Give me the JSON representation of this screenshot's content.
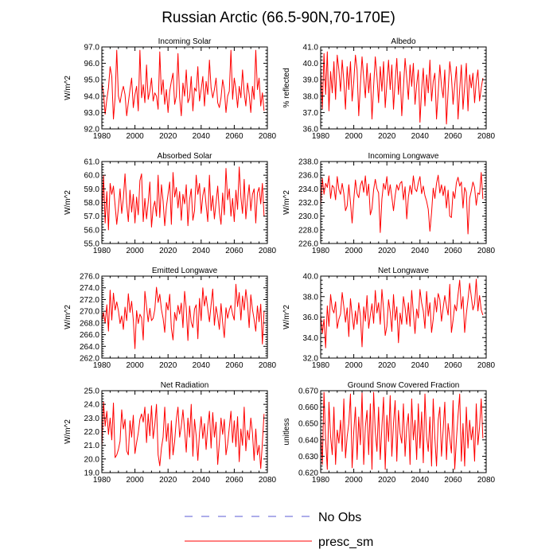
{
  "figure_title": "Russian Arctic (66.5-90N,70-170E)",
  "colors": {
    "obs": "#5b5bd6",
    "model": "#ff0000",
    "axis": "#000000"
  },
  "legend": {
    "obs_label": "No Obs",
    "model_label": "presc_sm"
  },
  "chart_data": [
    {
      "type": "line",
      "title": "Incoming Solar",
      "ylabel": "W/m^2",
      "xlim": [
        1980,
        2080
      ],
      "ylim": [
        92.0,
        97.0
      ],
      "xticks": [
        "1980",
        "2000",
        "2020",
        "2040",
        "2060",
        "2080"
      ],
      "yticks": [
        "92.0",
        "93.0",
        "94.0",
        "95.0",
        "96.0",
        "97.0"
      ],
      "series": [
        {
          "name": "presc_sm",
          "x_start": 1980,
          "x_step": 1,
          "values": [
            94.8,
            94.2,
            92.9,
            93.8,
            94.5,
            95.8,
            95.2,
            92.6,
            93.9,
            96.8,
            94.0,
            93.6,
            94.2,
            94.6,
            94.1,
            92.8,
            93.6,
            94.4,
            95.1,
            93.3,
            94.1,
            94.6,
            93.1,
            96.8,
            93.9,
            94.7,
            93.6,
            95.9,
            93.8,
            94.3,
            95.1,
            93.7,
            94.2,
            94.0,
            93.2,
            96.7,
            94.1,
            95.0,
            93.5,
            94.4,
            93.0,
            94.3,
            94.9,
            95.4,
            93.5,
            94.0,
            96.6,
            93.9,
            92.8,
            94.8,
            94.0,
            95.6,
            93.6,
            93.9,
            95.2,
            93.1,
            94.5,
            94.3,
            95.8,
            93.7,
            94.4,
            95.2,
            93.4,
            94.9,
            94.1,
            96.2,
            94.5,
            93.9,
            94.4,
            95.1,
            93.6,
            93.3,
            93.9,
            95.0,
            94.4,
            93.0,
            94.0,
            94.3,
            96.8,
            93.8,
            95.1,
            94.4,
            93.3,
            94.6,
            93.9,
            95.6,
            94.2,
            93.4,
            94.8,
            94.1,
            93.0,
            94.6,
            93.8,
            96.8,
            94.4,
            95.1,
            93.4,
            94.2,
            93.1
          ]
        }
      ]
    },
    {
      "type": "line",
      "title": "Albedo",
      "ylabel": "% reflected",
      "xlim": [
        1980,
        2080
      ],
      "ylim": [
        36.0,
        41.0
      ],
      "xticks": [
        "1980",
        "2000",
        "2020",
        "2040",
        "2060",
        "2080"
      ],
      "yticks": [
        "36.0",
        "37.0",
        "38.0",
        "39.0",
        "40.0",
        "41.0"
      ],
      "series": [
        {
          "name": "presc_sm",
          "x_start": 1980,
          "x_step": 1,
          "values": [
            39.8,
            37.2,
            40.6,
            38.1,
            40.7,
            37.1,
            39.5,
            38.2,
            40.1,
            37.8,
            40.5,
            39.6,
            38.3,
            40.2,
            38.9,
            37.2,
            39.8,
            38.4,
            40.1,
            37.7,
            38.9,
            40.5,
            39.6,
            36.8,
            38.7,
            40.4,
            39.1,
            37.9,
            40.0,
            38.2,
            39.4,
            36.6,
            38.6,
            40.4,
            39.2,
            37.6,
            39.8,
            38.3,
            40.1,
            37.3,
            38.8,
            40.2,
            38.4,
            39.9,
            37.2,
            38.9,
            40.3,
            38.1,
            39.5,
            36.8,
            38.5,
            40.3,
            39.1,
            37.8,
            39.9,
            38.6,
            40.0,
            37.5,
            38.7,
            39.6,
            36.4,
            38.4,
            39.7,
            37.4,
            39.3,
            38.2,
            40.2,
            37.7,
            38.9,
            39.4,
            36.6,
            38.2,
            39.9,
            38.6,
            37.9,
            39.6,
            36.3,
            38.3,
            40.1,
            39.2,
            37.5,
            38.7,
            39.8,
            36.6,
            38.4,
            39.9,
            37.2,
            38.6,
            40.0,
            37.1,
            39.3,
            38.5,
            39.4,
            37.6,
            38.9,
            39.6,
            37.7,
            38.5,
            39.1
          ]
        }
      ]
    },
    {
      "type": "line",
      "title": "Absorbed Solar",
      "ylabel": "W/m^2",
      "xlim": [
        1980,
        2080
      ],
      "ylim": [
        55.0,
        61.0
      ],
      "xticks": [
        "1980",
        "2000",
        "2020",
        "2040",
        "2060",
        "2080"
      ],
      "yticks": [
        "55.0",
        "56.0",
        "57.0",
        "58.0",
        "59.0",
        "60.0",
        "61.0"
      ],
      "series": [
        {
          "name": "presc_sm",
          "x_start": 1980,
          "x_step": 1,
          "values": [
            57.0,
            60.0,
            56.5,
            58.8,
            56.0,
            59.4,
            58.6,
            59.2,
            57.8,
            56.4,
            57.6,
            59.0,
            57.2,
            58.3,
            60.1,
            57.9,
            56.6,
            58.9,
            57.3,
            58.6,
            56.5,
            58.4,
            57.1,
            59.6,
            60.1,
            56.6,
            58.3,
            56.8,
            58.0,
            59.5,
            56.2,
            57.6,
            58.1,
            57.0,
            60.0,
            56.9,
            59.3,
            58.1,
            56.3,
            57.7,
            58.6,
            59.5,
            56.4,
            60.2,
            58.4,
            59.1,
            57.6,
            58.8,
            56.7,
            58.6,
            57.9,
            59.3,
            56.3,
            58.2,
            59.0,
            56.7,
            57.4,
            60.0,
            58.6,
            59.4,
            57.2,
            58.5,
            59.1,
            57.8,
            56.6,
            60.0,
            57.4,
            58.5,
            56.8,
            58.0,
            59.2,
            57.3,
            56.4,
            58.7,
            57.1,
            60.5,
            58.2,
            59.0,
            57.0,
            58.3,
            56.6,
            58.9,
            57.5,
            60.6,
            58.4,
            57.2,
            59.7,
            56.8,
            58.2,
            59.3,
            57.4,
            58.6,
            59.0,
            56.5,
            58.7,
            59.1,
            57.9,
            59.4,
            57.0
          ]
        }
      ]
    },
    {
      "type": "line",
      "title": "Incoming Longwave",
      "ylabel": "W/m^2",
      "xlim": [
        1980,
        2080
      ],
      "ylim": [
        226.0,
        238.0
      ],
      "xticks": [
        "1980",
        "2000",
        "2020",
        "2040",
        "2060",
        "2080"
      ],
      "yticks": [
        "226.0",
        "228.0",
        "230.0",
        "232.0",
        "234.0",
        "236.0",
        "238.0"
      ],
      "series": [
        {
          "name": "presc_sm",
          "x_start": 1980,
          "x_step": 1,
          "values": [
            231.5,
            235.6,
            233.2,
            234.8,
            234.2,
            235.9,
            232.6,
            234.5,
            234.2,
            232.4,
            235.8,
            233.9,
            233.2,
            234.8,
            233.3,
            230.8,
            231.5,
            234.6,
            232.0,
            229.0,
            232.4,
            235.3,
            233.3,
            232.7,
            234.5,
            235.2,
            233.5,
            235.9,
            233.0,
            234.7,
            230.2,
            231.1,
            233.9,
            235.4,
            234.0,
            233.4,
            227.6,
            232.5,
            234.8,
            233.9,
            235.8,
            233.0,
            234.6,
            232.8,
            230.8,
            233.0,
            234.6,
            233.8,
            234.8,
            235.1,
            232.4,
            234.3,
            229.6,
            232.8,
            234.5,
            233.2,
            235.9,
            234.0,
            233.6,
            234.9,
            235.8,
            233.3,
            234.4,
            233.0,
            232.2,
            231.0,
            227.8,
            230.5,
            234.1,
            232.6,
            234.8,
            236.0,
            233.4,
            234.6,
            233.0,
            234.4,
            231.2,
            233.8,
            230.0,
            229.8,
            233.6,
            232.6,
            234.9,
            235.7,
            234.4,
            235.0,
            231.2,
            234.2,
            233.5,
            227.4,
            232.6,
            233.7,
            235.0,
            234.2,
            231.6,
            233.4,
            233.2,
            236.4,
            232.5
          ]
        }
      ]
    },
    {
      "type": "line",
      "title": "Emitted Longwave",
      "ylabel": "W/m^2",
      "xlim": [
        1980,
        2080
      ],
      "ylim": [
        262.0,
        276.0
      ],
      "xticks": [
        "1980",
        "2000",
        "2020",
        "2040",
        "2060",
        "2080"
      ],
      "yticks": [
        "262.0",
        "264.0",
        "266.0",
        "268.0",
        "270.0",
        "272.0",
        "274.0",
        "276.0"
      ],
      "series": [
        {
          "name": "presc_sm",
          "x_start": 1980,
          "x_step": 1,
          "values": [
            268.4,
            269.8,
            268.0,
            271.1,
            266.6,
            273.6,
            268.5,
            273.1,
            270.2,
            271.6,
            270.1,
            267.9,
            269.2,
            266.9,
            270.7,
            268.4,
            273.0,
            269.8,
            271.7,
            268.5,
            263.6,
            270.1,
            267.9,
            269.5,
            268.9,
            265.1,
            273.4,
            270.8,
            268.2,
            270.5,
            268.4,
            268.8,
            270.3,
            274.1,
            271.5,
            272.9,
            270.3,
            268.8,
            266.4,
            271.5,
            270.2,
            272.9,
            267.1,
            265.1,
            269.8,
            268.4,
            271.0,
            269.5,
            271.4,
            267.2,
            273.4,
            270.5,
            265.0,
            270.9,
            268.1,
            267.2,
            270.4,
            271.1,
            265.3,
            272.2,
            268.4,
            274.0,
            270.9,
            272.6,
            270.4,
            268.2,
            271.1,
            273.8,
            267.6,
            270.8,
            269.1,
            266.9,
            271.3,
            268.0,
            265.5,
            270.6,
            268.8,
            270.2,
            271.0,
            269.5,
            268.5,
            274.6,
            270.8,
            273.2,
            268.5,
            272.6,
            270.2,
            273.7,
            271.4,
            267.2,
            272.8,
            270.3,
            268.6,
            266.6,
            270.9,
            268.2,
            271.2,
            264.4,
            270.0
          ]
        }
      ]
    },
    {
      "type": "line",
      "title": "Net Longwave",
      "ylabel": "W/m^2",
      "xlim": [
        1980,
        2080
      ],
      "ylim": [
        32.0,
        40.0
      ],
      "xticks": [
        "1980",
        "2000",
        "2020",
        "2040",
        "2060",
        "2080"
      ],
      "yticks": [
        "32.0",
        "34.0",
        "36.0",
        "38.0",
        "40.0"
      ],
      "series": [
        {
          "name": "presc_sm",
          "x_start": 1980,
          "x_step": 1,
          "values": [
            36.2,
            34.4,
            35.8,
            33.0,
            37.1,
            35.1,
            38.2,
            36.8,
            36.4,
            37.5,
            34.9,
            35.8,
            36.3,
            38.4,
            37.0,
            35.5,
            36.9,
            34.1,
            37.8,
            36.2,
            34.8,
            36.6,
            35.3,
            37.4,
            36.1,
            33.1,
            37.0,
            35.6,
            38.1,
            34.9,
            36.2,
            37.3,
            35.4,
            38.6,
            36.4,
            37.4,
            35.3,
            38.7,
            36.8,
            34.2,
            35.1,
            37.7,
            36.5,
            34.6,
            38.2,
            35.7,
            37.0,
            33.5,
            36.4,
            35.3,
            38.0,
            36.9,
            35.3,
            37.4,
            35.1,
            38.6,
            36.4,
            34.4,
            36.8,
            35.9,
            38.7,
            37.4,
            36.6,
            34.9,
            38.5,
            36.1,
            37.4,
            34.5,
            35.8,
            37.9,
            36.5,
            38.3,
            37.7,
            35.6,
            36.9,
            38.1,
            37.1,
            36.2,
            39.2,
            34.5,
            35.7,
            37.2,
            36.6,
            38.2,
            39.6,
            36.8,
            38.0,
            34.5,
            36.3,
            37.7,
            39.3,
            38.0,
            36.7,
            37.3,
            39.7,
            36.6,
            38.1,
            36.7,
            36.2
          ]
        }
      ]
    },
    {
      "type": "line",
      "title": "Net Radiation",
      "ylabel": "W/m^2",
      "xlim": [
        1980,
        2080
      ],
      "ylim": [
        19.0,
        25.0
      ],
      "xticks": [
        "1980",
        "2000",
        "2020",
        "2040",
        "2060",
        "2080"
      ],
      "yticks": [
        "19.0",
        "20.0",
        "21.0",
        "22.0",
        "23.0",
        "24.0",
        "25.0"
      ],
      "series": [
        {
          "name": "presc_sm",
          "x_start": 1980,
          "x_step": 1,
          "values": [
            20.8,
            24.2,
            22.4,
            23.5,
            21.8,
            23.0,
            21.4,
            24.1,
            20.1,
            20.3,
            20.7,
            21.3,
            23.6,
            22.2,
            22.9,
            20.6,
            20.3,
            22.8,
            21.6,
            23.2,
            20.4,
            21.2,
            21.9,
            22.9,
            23.3,
            22.7,
            23.8,
            21.2,
            23.3,
            21.7,
            23.9,
            21.5,
            22.5,
            24.0,
            20.3,
            19.5,
            20.8,
            21.6,
            23.8,
            21.3,
            22.6,
            20.0,
            22.8,
            20.3,
            21.3,
            22.9,
            23.8,
            21.6,
            22.4,
            23.6,
            22.1,
            20.5,
            23.0,
            21.6,
            24.0,
            20.2,
            22.9,
            21.7,
            19.9,
            21.9,
            23.1,
            21.5,
            22.6,
            20.7,
            22.4,
            23.5,
            20.8,
            23.4,
            21.6,
            22.7,
            19.6,
            21.2,
            23.0,
            21.8,
            22.9,
            20.3,
            21.1,
            22.3,
            23.5,
            21.2,
            22.8,
            20.9,
            23.1,
            19.8,
            22.2,
            21.0,
            23.8,
            20.6,
            22.1,
            21.4,
            23.0,
            21.9,
            19.9,
            22.2,
            20.3,
            21.0,
            19.3,
            21.2,
            23.3
          ]
        }
      ]
    },
    {
      "type": "line",
      "title": "Ground Snow Covered Fraction",
      "ylabel": "unitless",
      "xlim": [
        1980,
        2080
      ],
      "ylim": [
        0.62,
        0.67
      ],
      "xticks": [
        "1980",
        "2000",
        "2020",
        "2040",
        "2060",
        "2080"
      ],
      "yticks": [
        "0.620",
        "0.630",
        "0.640",
        "0.650",
        "0.660",
        "0.670"
      ],
      "series": [
        {
          "name": "presc_sm",
          "x_start": 1980,
          "x_step": 1,
          "values": [
            0.645,
            0.625,
            0.669,
            0.64,
            0.622,
            0.663,
            0.642,
            0.631,
            0.66,
            0.625,
            0.646,
            0.638,
            0.652,
            0.633,
            0.665,
            0.629,
            0.642,
            0.65,
            0.668,
            0.623,
            0.645,
            0.66,
            0.628,
            0.654,
            0.637,
            0.669,
            0.625,
            0.648,
            0.658,
            0.631,
            0.662,
            0.622,
            0.669,
            0.645,
            0.633,
            0.66,
            0.628,
            0.648,
            0.666,
            0.622,
            0.655,
            0.639,
            0.667,
            0.63,
            0.65,
            0.664,
            0.627,
            0.658,
            0.644,
            0.638,
            0.662,
            0.63,
            0.648,
            0.656,
            0.625,
            0.665,
            0.64,
            0.652,
            0.628,
            0.662,
            0.635,
            0.657,
            0.626,
            0.668,
            0.642,
            0.633,
            0.654,
            0.624,
            0.665,
            0.641,
            0.624,
            0.652,
            0.66,
            0.63,
            0.646,
            0.663,
            0.628,
            0.65,
            0.641,
            0.632,
            0.664,
            0.622,
            0.64,
            0.655,
            0.668,
            0.627,
            0.65,
            0.624,
            0.66,
            0.635,
            0.652,
            0.64,
            0.648,
            0.627,
            0.662,
            0.637,
            0.648,
            0.665,
            0.641
          ]
        }
      ]
    }
  ]
}
